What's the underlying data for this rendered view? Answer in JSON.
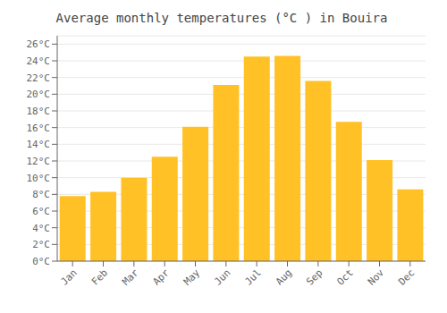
{
  "chart_data": {
    "type": "bar",
    "title": "Average monthly temperatures (°C ) in Bouira",
    "categories": [
      "Jan",
      "Feb",
      "Mar",
      "Apr",
      "May",
      "Jun",
      "Jul",
      "Aug",
      "Sep",
      "Oct",
      "Nov",
      "Dec"
    ],
    "values": [
      7.8,
      8.3,
      10.0,
      12.5,
      16.1,
      21.1,
      24.5,
      24.6,
      21.6,
      16.7,
      12.1,
      8.6
    ],
    "color": "#FFC125",
    "ylim": [
      0,
      27
    ],
    "yticks": [
      {
        "value": 0,
        "label": "0°C"
      },
      {
        "value": 2,
        "label": "2°C"
      },
      {
        "value": 4,
        "label": "4°C"
      },
      {
        "value": 6,
        "label": "6°C"
      },
      {
        "value": 8,
        "label": "8°C"
      },
      {
        "value": 10,
        "label": "10°C"
      },
      {
        "value": 12,
        "label": "12°C"
      },
      {
        "value": 14,
        "label": "14°C"
      },
      {
        "value": 16,
        "label": "16°C"
      },
      {
        "value": 18,
        "label": "18°C"
      },
      {
        "value": 20,
        "label": "20°C"
      },
      {
        "value": 22,
        "label": "22°C"
      },
      {
        "value": 24,
        "label": "24°C"
      },
      {
        "value": 26,
        "label": "26°C"
      }
    ],
    "grid": true
  }
}
